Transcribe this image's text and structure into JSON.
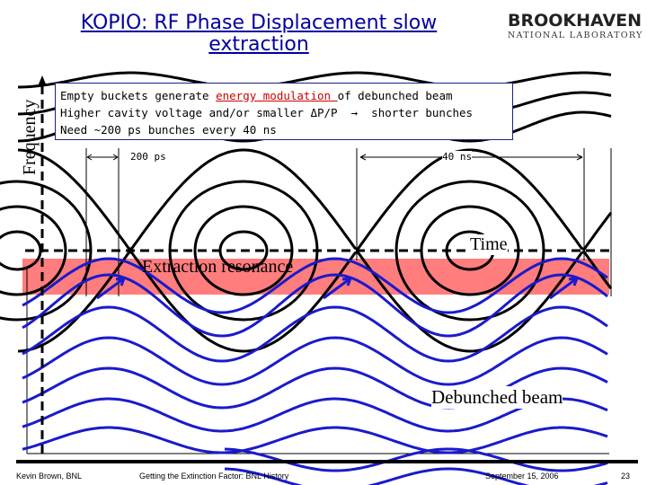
{
  "title": "KOPIO: RF Phase Displacement slow extraction",
  "logo": {
    "name": "BROOKHAVEN",
    "subtitle": "NATIONAL LABORATORY"
  },
  "info_box": {
    "line1_pre": "Empty buckets generate ",
    "line1_highlight": "energy modulation ",
    "line1_post": "of debunched beam",
    "line2": "Higher cavity voltage and/or smaller ΔP/P  →  shorter bunches",
    "line3": "Need ~200 ps bunches every 40 ns"
  },
  "diagram": {
    "y_axis_label": "Frequency",
    "x_axis_label": "Time",
    "dim_short": "200 ps",
    "dim_long": "40 ns",
    "band_label": "Extraction resonance",
    "beam_label": "Debunched beam",
    "colors": {
      "separatrix": "#000000",
      "beam": "#1a1acc",
      "resonance_band": "#ff6666"
    }
  },
  "footer": {
    "author": "Kevin Brown, BNL",
    "talk": "Getting the Extinction Factor: BNL History",
    "date": "September 15, 2006",
    "page": "23"
  }
}
